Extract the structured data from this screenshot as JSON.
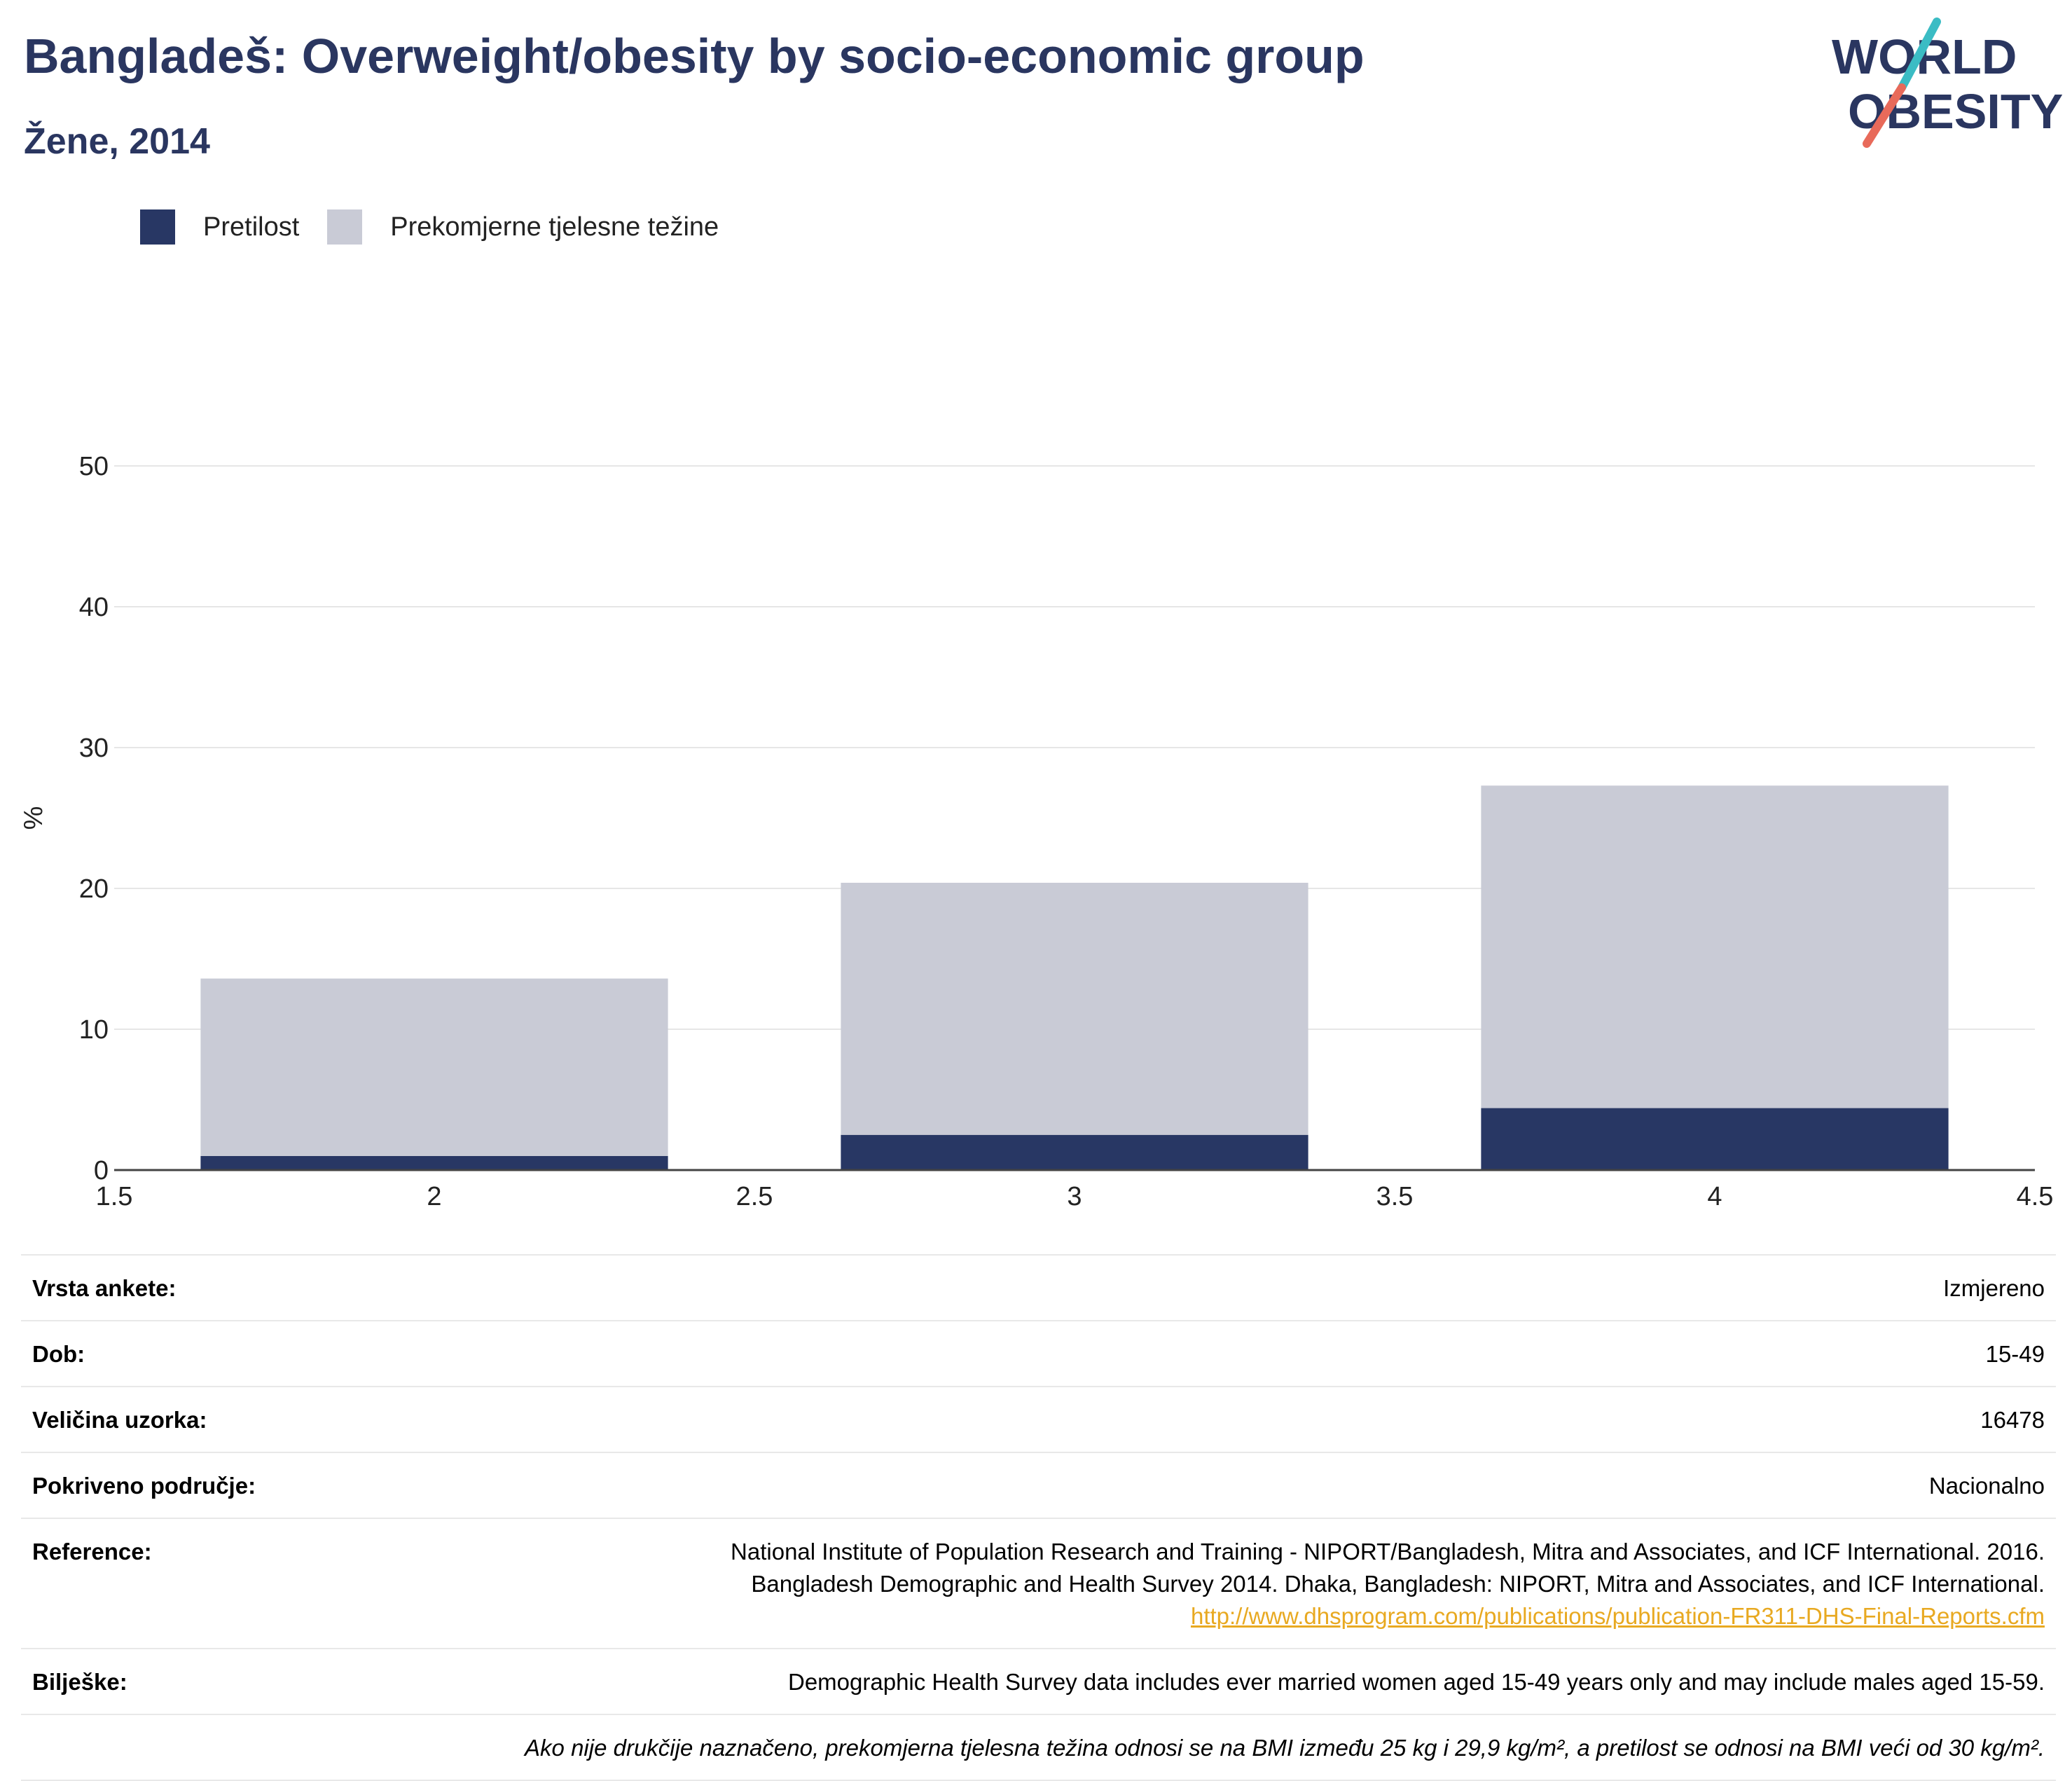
{
  "title": "Bangladeš: Overweight/obesity by socio-economic group",
  "subtitle": "Žene, 2014",
  "logo": {
    "line1": "WORLD",
    "line2": "OBESITY",
    "colors": {
      "text": "#2a3660",
      "slash_top": "#3bbcc4",
      "slash_bottom": "#e86a5a"
    }
  },
  "legend": [
    {
      "label": "Pretilost",
      "color": "#283764"
    },
    {
      "label": "Prekomjerne tjelesne težine",
      "color": "#c9cbd6"
    }
  ],
  "chart_data": {
    "type": "bar",
    "stacked": true,
    "x": [
      2,
      3,
      4
    ],
    "bar_width": 0.73,
    "series": [
      {
        "name": "Pretilost",
        "color": "#283764",
        "values": [
          1.0,
          2.5,
          4.4
        ]
      },
      {
        "name": "Prekomjerne tjelesne težine",
        "color": "#c9cbd6",
        "values": [
          12.6,
          17.9,
          22.9
        ]
      }
    ],
    "ylabel": "%",
    "xlim": [
      1.5,
      4.5
    ],
    "ylim": [
      0,
      50
    ],
    "xticks": [
      "1.5",
      "2",
      "2.5",
      "3",
      "3.5",
      "4",
      "4.5"
    ],
    "yticks": [
      "0",
      "10",
      "20",
      "30",
      "40",
      "50"
    ],
    "grid": true,
    "legend_position": "top-left"
  },
  "info": {
    "rows": [
      {
        "label": "Vrsta ankete:",
        "value": "Izmjereno"
      },
      {
        "label": "Dob:",
        "value": "15-49"
      },
      {
        "label": "Veličina uzorka:",
        "value": "16478"
      },
      {
        "label": "Pokriveno područje:",
        "value": "Nacionalno"
      }
    ],
    "reference": {
      "label": "Reference:",
      "line1": "National Institute of Population Research and Training - NIPORT/Bangladesh, Mitra and Associates, and ICF International. 2016.",
      "line2": "Bangladesh Demographic and Health Survey 2014. Dhaka, Bangladesh: NIPORT, Mitra and Associates, and ICF International.",
      "link": "http://www.dhsprogram.com/publications/publication-FR311-DHS-Final-Reports.cfm"
    },
    "notes": {
      "label": "Bilješke:",
      "value": "Demographic Health Survey data includes ever married women aged 15-49 years only and may include males aged 15-59."
    },
    "footnote": "Ako nije drukčije naznačeno, prekomjerna tjelesna težina odnosi se na BMI između 25 kg i 29,9 kg/m², a pretilost se odnosi na BMI veći od 30 kg/m²."
  }
}
